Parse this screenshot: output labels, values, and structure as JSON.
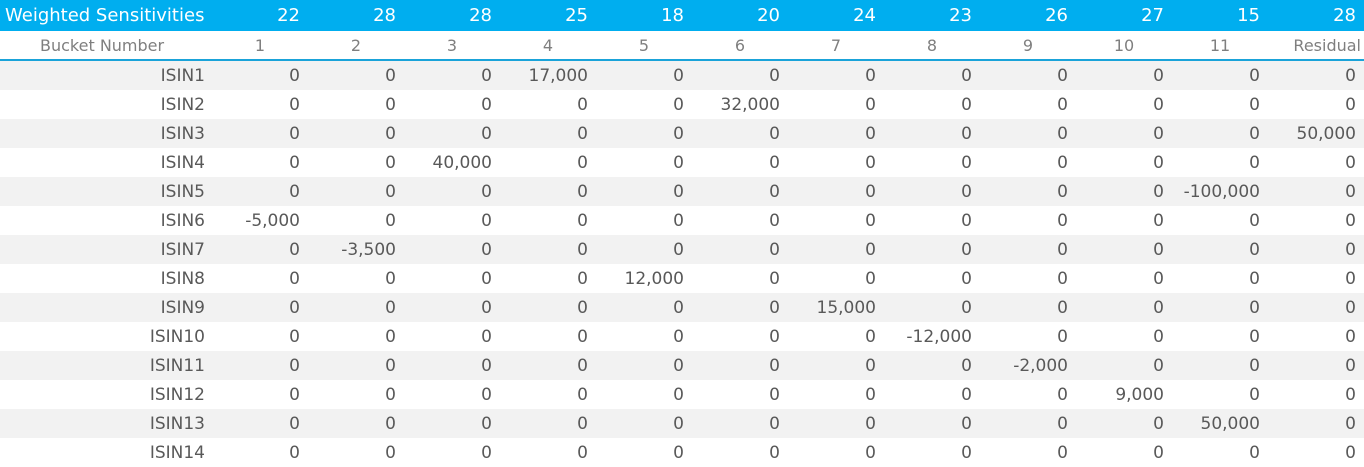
{
  "header": {
    "title": "Weighted Sensitivities",
    "weights": [
      "22",
      "28",
      "28",
      "25",
      "18",
      "20",
      "24",
      "23",
      "26",
      "27",
      "15",
      "28"
    ]
  },
  "subheader": {
    "label": "Bucket Number",
    "buckets": [
      "1",
      "2",
      "3",
      "4",
      "5",
      "6",
      "7",
      "8",
      "9",
      "10",
      "11",
      "Residual"
    ]
  },
  "rows": [
    {
      "isin": "ISIN1",
      "values": [
        "0",
        "0",
        "0",
        "17,000",
        "0",
        "0",
        "0",
        "0",
        "0",
        "0",
        "0",
        "0"
      ]
    },
    {
      "isin": "ISIN2",
      "values": [
        "0",
        "0",
        "0",
        "0",
        "0",
        "32,000",
        "0",
        "0",
        "0",
        "0",
        "0",
        "0"
      ]
    },
    {
      "isin": "ISIN3",
      "values": [
        "0",
        "0",
        "0",
        "0",
        "0",
        "0",
        "0",
        "0",
        "0",
        "0",
        "0",
        "50,000"
      ]
    },
    {
      "isin": "ISIN4",
      "values": [
        "0",
        "0",
        "40,000",
        "0",
        "0",
        "0",
        "0",
        "0",
        "0",
        "0",
        "0",
        "0"
      ]
    },
    {
      "isin": "ISIN5",
      "values": [
        "0",
        "0",
        "0",
        "0",
        "0",
        "0",
        "0",
        "0",
        "0",
        "0",
        "-100,000",
        "0"
      ]
    },
    {
      "isin": "ISIN6",
      "values": [
        "-5,000",
        "0",
        "0",
        "0",
        "0",
        "0",
        "0",
        "0",
        "0",
        "0",
        "0",
        "0"
      ]
    },
    {
      "isin": "ISIN7",
      "values": [
        "0",
        "-3,500",
        "0",
        "0",
        "0",
        "0",
        "0",
        "0",
        "0",
        "0",
        "0",
        "0"
      ]
    },
    {
      "isin": "ISIN8",
      "values": [
        "0",
        "0",
        "0",
        "0",
        "12,000",
        "0",
        "0",
        "0",
        "0",
        "0",
        "0",
        "0"
      ]
    },
    {
      "isin": "ISIN9",
      "values": [
        "0",
        "0",
        "0",
        "0",
        "0",
        "0",
        "15,000",
        "0",
        "0",
        "0",
        "0",
        "0"
      ]
    },
    {
      "isin": "ISIN10",
      "values": [
        "0",
        "0",
        "0",
        "0",
        "0",
        "0",
        "0",
        "-12,000",
        "0",
        "0",
        "0",
        "0"
      ]
    },
    {
      "isin": "ISIN11",
      "values": [
        "0",
        "0",
        "0",
        "0",
        "0",
        "0",
        "0",
        "0",
        "-2,000",
        "0",
        "0",
        "0"
      ]
    },
    {
      "isin": "ISIN12",
      "values": [
        "0",
        "0",
        "0",
        "0",
        "0",
        "0",
        "0",
        "0",
        "0",
        "9,000",
        "0",
        "0"
      ]
    },
    {
      "isin": "ISIN13",
      "values": [
        "0",
        "0",
        "0",
        "0",
        "0",
        "0",
        "0",
        "0",
        "0",
        "0",
        "50,000",
        "0"
      ]
    },
    {
      "isin": "ISIN14",
      "values": [
        "0",
        "0",
        "0",
        "0",
        "0",
        "0",
        "0",
        "0",
        "0",
        "0",
        "0",
        "0"
      ]
    }
  ],
  "colors": {
    "header_bg": "#00aeef",
    "header_text": "#ffffff",
    "band": "#f2f2f2",
    "text": "#595959"
  }
}
